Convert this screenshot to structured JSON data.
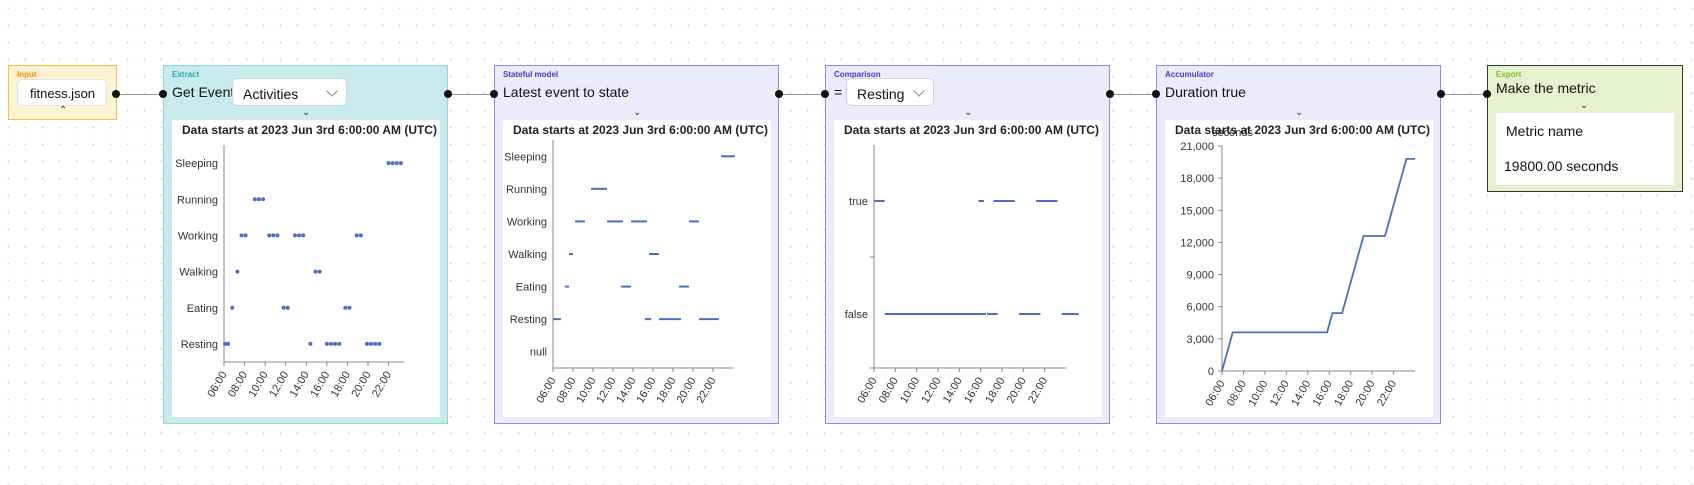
{
  "canvas": {
    "title": ""
  },
  "nodes": {
    "input": {
      "tag": "Input",
      "file": "fitness.json",
      "tag_color": "#e8940a",
      "border": "#f0c24a",
      "bg": "#fdf3d2"
    },
    "extract": {
      "tag": "Extract",
      "title": "Get Event",
      "select": "Activities",
      "tag_color": "#2aa6ad",
      "border": "#8fd5d9",
      "bg": "#c8eaec"
    },
    "stateful": {
      "tag": "Stateful model",
      "title": "Latest event to state",
      "tag_color": "#3a3ec9",
      "border": "#8a8de0",
      "bg": "#ebebfc"
    },
    "comparison": {
      "tag": "Comparison",
      "operator": "=",
      "select": "Resting",
      "tag_color": "#3a3ec9",
      "border": "#8a8de0",
      "bg": "#ebebfc"
    },
    "accumulator": {
      "tag": "Accumulator",
      "title": "Duration true",
      "tag_color": "#3a3ec9",
      "border": "#8a8de0",
      "bg": "#ebebfc"
    },
    "export": {
      "tag": "Export",
      "title": "Make the metric",
      "metric_label": "Metric name",
      "metric_value": "19800.00 seconds",
      "tag_color": "#7fbf2a",
      "border": "#333333",
      "bg": "#e6f2cf"
    }
  },
  "charts_common": {
    "title": "Data starts at 2023 Jun 3rd 6:00:00 AM (UTC)",
    "x_ticks": [
      "06:00",
      "08:00",
      "10:00",
      "12:00",
      "14:00",
      "16:00",
      "18:00",
      "20:00",
      "22:00"
    ],
    "series_color": "#4a6fc4"
  },
  "chart_data": [
    {
      "type": "scatter",
      "title": "Data starts at 2023 Jun 3rd 6:00:00 AM (UTC)",
      "categories": [
        "Resting",
        "Eating",
        "Walking",
        "Working",
        "Running",
        "Sleeping"
      ],
      "xlim": [
        6,
        23.5
      ],
      "points": [
        {
          "x": 6.1,
          "y": "Resting"
        },
        {
          "x": 6.4,
          "y": "Resting"
        },
        {
          "x": 6.8,
          "y": "Eating"
        },
        {
          "x": 7.3,
          "y": "Walking"
        },
        {
          "x": 7.7,
          "y": "Working"
        },
        {
          "x": 8.1,
          "y": "Working"
        },
        {
          "x": 9.0,
          "y": "Running"
        },
        {
          "x": 9.4,
          "y": "Running"
        },
        {
          "x": 9.8,
          "y": "Running"
        },
        {
          "x": 10.4,
          "y": "Working"
        },
        {
          "x": 10.8,
          "y": "Working"
        },
        {
          "x": 11.2,
          "y": "Working"
        },
        {
          "x": 11.8,
          "y": "Eating"
        },
        {
          "x": 12.2,
          "y": "Eating"
        },
        {
          "x": 12.9,
          "y": "Working"
        },
        {
          "x": 13.3,
          "y": "Working"
        },
        {
          "x": 13.7,
          "y": "Working"
        },
        {
          "x": 14.4,
          "y": "Resting"
        },
        {
          "x": 14.9,
          "y": "Walking"
        },
        {
          "x": 15.3,
          "y": "Walking"
        },
        {
          "x": 16.0,
          "y": "Resting"
        },
        {
          "x": 16.4,
          "y": "Resting"
        },
        {
          "x": 16.8,
          "y": "Resting"
        },
        {
          "x": 17.2,
          "y": "Resting"
        },
        {
          "x": 17.8,
          "y": "Eating"
        },
        {
          "x": 18.2,
          "y": "Eating"
        },
        {
          "x": 18.9,
          "y": "Working"
        },
        {
          "x": 19.3,
          "y": "Working"
        },
        {
          "x": 19.9,
          "y": "Resting"
        },
        {
          "x": 20.3,
          "y": "Resting"
        },
        {
          "x": 20.7,
          "y": "Resting"
        },
        {
          "x": 21.1,
          "y": "Resting"
        },
        {
          "x": 22.0,
          "y": "Sleeping"
        },
        {
          "x": 22.4,
          "y": "Sleeping"
        },
        {
          "x": 22.8,
          "y": "Sleeping"
        },
        {
          "x": 23.2,
          "y": "Sleeping"
        }
      ]
    },
    {
      "type": "line",
      "title": "Data starts at 2023 Jun 3rd 6:00:00 AM (UTC)",
      "categories": [
        "null",
        "Resting",
        "Eating",
        "Walking",
        "Working",
        "Running",
        "Sleeping"
      ],
      "xlim": [
        6,
        24
      ],
      "segments": [
        {
          "x0": 6.0,
          "x1": 6.8,
          "y": "Resting"
        },
        {
          "x0": 7.2,
          "x1": 7.6,
          "y": "Eating"
        },
        {
          "x0": 7.6,
          "x1": 8.0,
          "y": "Walking"
        },
        {
          "x0": 8.2,
          "x1": 9.2,
          "y": "Working"
        },
        {
          "x0": 9.8,
          "x1": 11.4,
          "y": "Running"
        },
        {
          "x0": 11.4,
          "x1": 13.0,
          "y": "Working"
        },
        {
          "x0": 12.8,
          "x1": 13.8,
          "y": "Eating"
        },
        {
          "x0": 13.8,
          "x1": 15.4,
          "y": "Working"
        },
        {
          "x0": 15.2,
          "x1": 15.8,
          "y": "Resting"
        },
        {
          "x0": 15.6,
          "x1": 16.6,
          "y": "Walking"
        },
        {
          "x0": 16.6,
          "x1": 18.8,
          "y": "Resting"
        },
        {
          "x0": 18.6,
          "x1": 19.6,
          "y": "Eating"
        },
        {
          "x0": 19.6,
          "x1": 20.6,
          "y": "Working"
        },
        {
          "x0": 20.6,
          "x1": 22.6,
          "y": "Resting"
        },
        {
          "x0": 22.8,
          "x1": 24.2,
          "y": "Sleeping"
        }
      ]
    },
    {
      "type": "line",
      "title": "Data starts at 2023 Jun 3rd 6:00:00 AM (UTC)",
      "categories": [
        "false",
        "true"
      ],
      "xlim": [
        6,
        24
      ],
      "segments": [
        {
          "x0": 6.0,
          "x1": 7.0,
          "y": "true"
        },
        {
          "x0": 7.0,
          "x1": 16.5,
          "y": "false"
        },
        {
          "x0": 15.8,
          "x1": 16.3,
          "y": "true"
        },
        {
          "x0": 16.6,
          "x1": 17.6,
          "y": "false"
        },
        {
          "x0": 17.2,
          "x1": 19.2,
          "y": "true"
        },
        {
          "x0": 19.6,
          "x1": 21.6,
          "y": "false"
        },
        {
          "x0": 21.2,
          "x1": 23.2,
          "y": "true"
        },
        {
          "x0": 23.6,
          "x1": 25.2,
          "y": "false"
        }
      ]
    },
    {
      "type": "line",
      "title": "Data starts at 2023 Jun 3rd 6:00:00 AM (UTC)",
      "ylabel": "seconds",
      "y_ticks": [
        0,
        3000,
        6000,
        9000,
        12000,
        15000,
        18000,
        21000
      ],
      "y_tick_labels": [
        "0",
        "3,000",
        "6,000",
        "9,000",
        "12,000",
        "15,000",
        "18,000",
        "21,000"
      ],
      "ylim": [
        0,
        21000
      ],
      "xlim": [
        6,
        24
      ],
      "points": [
        {
          "x": 6.0,
          "y": 0
        },
        {
          "x": 7.0,
          "y": 3600
        },
        {
          "x": 15.8,
          "y": 3600
        },
        {
          "x": 16.3,
          "y": 5400
        },
        {
          "x": 17.2,
          "y": 5400
        },
        {
          "x": 19.2,
          "y": 12600
        },
        {
          "x": 21.2,
          "y": 12600
        },
        {
          "x": 23.2,
          "y": 19800
        },
        {
          "x": 24.0,
          "y": 19800
        }
      ]
    }
  ]
}
